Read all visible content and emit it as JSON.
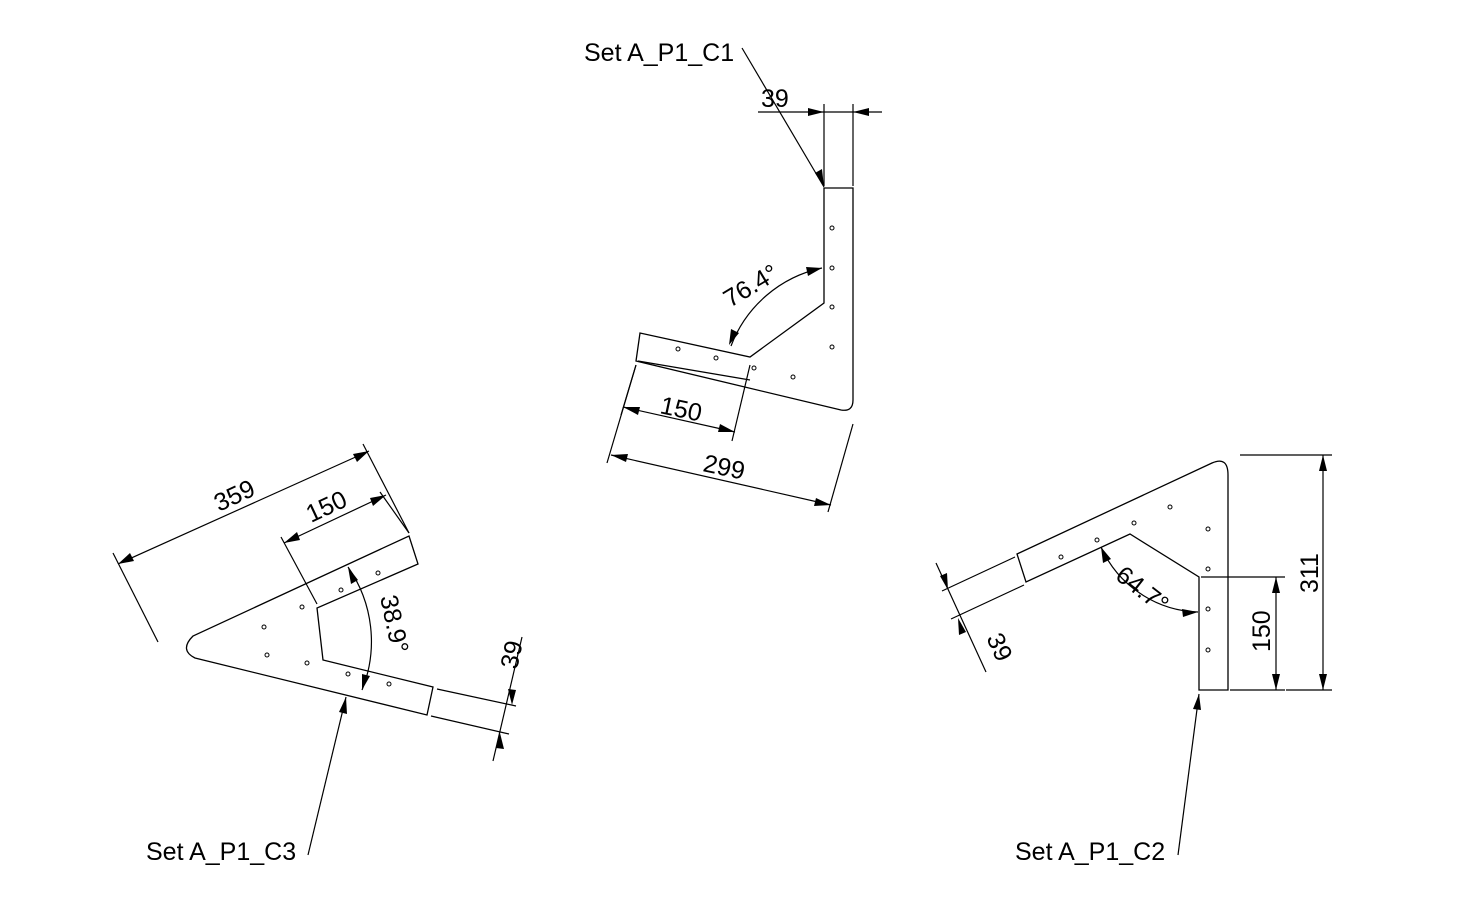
{
  "parts": [
    {
      "id": "c1",
      "label": "Set A_P1_C1",
      "dims": {
        "width": "39",
        "inner": "150",
        "length": "299",
        "angle": "76.4°"
      }
    },
    {
      "id": "c2",
      "label": "Set A_P1_C2",
      "dims": {
        "width": "39",
        "inner": "150",
        "length": "311",
        "angle": "64.7°"
      }
    },
    {
      "id": "c3",
      "label": "Set A_P1_C3",
      "dims": {
        "width": "39",
        "inner": "150",
        "length": "359",
        "angle": "38.9°"
      }
    }
  ]
}
